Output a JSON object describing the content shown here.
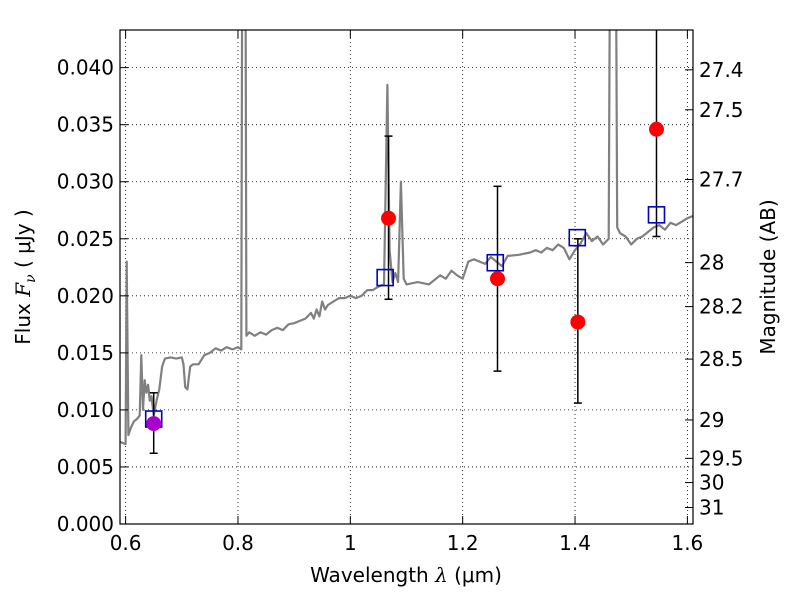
{
  "chart_data": {
    "type": "scatter",
    "xlabel": {
      "prefix": "Wavelength  ",
      "symbol": "λ",
      "unit": " (μm)"
    },
    "ylabel": {
      "prefix": "Flux  ",
      "symbol": "F",
      "sub": "ν",
      "unit": "  ( μJy )"
    },
    "y2label": "Magnitude (AB)",
    "xlim": [
      0.59,
      1.61
    ],
    "ylim": [
      0.0,
      0.0433
    ],
    "x_ticks": [
      0.6,
      0.8,
      1.0,
      1.2,
      1.4,
      1.6
    ],
    "x_tick_labels": [
      "0.6",
      "0.8",
      "1",
      "1.2",
      "1.4",
      "1.6"
    ],
    "y_ticks": [
      0.0,
      0.005,
      0.01,
      0.015,
      0.02,
      0.025,
      0.03,
      0.035,
      0.04
    ],
    "y_tick_labels": [
      "0.000",
      "0.005",
      "0.010",
      "0.015",
      "0.020",
      "0.025",
      "0.030",
      "0.035",
      "0.040"
    ],
    "y2_ticks": [
      {
        "label": "27.4",
        "mag": 27.4
      },
      {
        "label": "27.5",
        "mag": 27.5
      },
      {
        "label": "27.7",
        "mag": 27.7
      },
      {
        "label": "28",
        "mag": 28.0
      },
      {
        "label": "28.2",
        "mag": 28.2
      },
      {
        "label": "28.5",
        "mag": 28.5
      },
      {
        "label": "29",
        "mag": 29.0
      },
      {
        "label": "29.5",
        "mag": 29.5
      },
      {
        "label": "30",
        "mag": 30.0
      },
      {
        "label": "31",
        "mag": 31.0
      }
    ],
    "grid": true,
    "colors": {
      "spectrum": "#808080",
      "observed": "#ff0000",
      "model": "#0000cc",
      "errorbar": "#000000",
      "highlight": "#aa00cc"
    },
    "spectrum": [
      [
        0.59,
        0.0072
      ],
      [
        0.595,
        0.0071
      ],
      [
        0.6,
        0.007
      ],
      [
        0.602,
        0.023
      ],
      [
        0.605,
        0.0078
      ],
      [
        0.61,
        0.0085
      ],
      [
        0.615,
        0.009
      ],
      [
        0.62,
        0.0092
      ],
      [
        0.625,
        0.0095
      ],
      [
        0.628,
        0.0148
      ],
      [
        0.631,
        0.01
      ],
      [
        0.634,
        0.0126
      ],
      [
        0.637,
        0.0115
      ],
      [
        0.64,
        0.0122
      ],
      [
        0.643,
        0.0108
      ],
      [
        0.646,
        0.0112
      ],
      [
        0.65,
        0.0095
      ],
      [
        0.655,
        0.0108
      ],
      [
        0.66,
        0.0118
      ],
      [
        0.665,
        0.0138
      ],
      [
        0.67,
        0.0145
      ],
      [
        0.68,
        0.0146
      ],
      [
        0.69,
        0.0145
      ],
      [
        0.7,
        0.0146
      ],
      [
        0.703,
        0.014
      ],
      [
        0.706,
        0.012
      ],
      [
        0.71,
        0.0118
      ],
      [
        0.715,
        0.0138
      ],
      [
        0.72,
        0.014
      ],
      [
        0.73,
        0.014
      ],
      [
        0.74,
        0.0148
      ],
      [
        0.75,
        0.015
      ],
      [
        0.76,
        0.0154
      ],
      [
        0.77,
        0.0152
      ],
      [
        0.78,
        0.0155
      ],
      [
        0.79,
        0.0153
      ],
      [
        0.8,
        0.0155
      ],
      [
        0.806,
        0.0153
      ],
      [
        0.809,
        0.08
      ],
      [
        0.812,
        0.08
      ],
      [
        0.815,
        0.0165
      ],
      [
        0.82,
        0.0168
      ],
      [
        0.83,
        0.0165
      ],
      [
        0.84,
        0.0168
      ],
      [
        0.85,
        0.0166
      ],
      [
        0.86,
        0.017
      ],
      [
        0.87,
        0.0172
      ],
      [
        0.88,
        0.017
      ],
      [
        0.89,
        0.0175
      ],
      [
        0.9,
        0.0176
      ],
      [
        0.91,
        0.0178
      ],
      [
        0.92,
        0.018
      ],
      [
        0.93,
        0.0185
      ],
      [
        0.935,
        0.018
      ],
      [
        0.94,
        0.0188
      ],
      [
        0.945,
        0.0182
      ],
      [
        0.95,
        0.0195
      ],
      [
        0.955,
        0.0188
      ],
      [
        0.96,
        0.0192
      ],
      [
        0.97,
        0.0195
      ],
      [
        0.98,
        0.0198
      ],
      [
        0.99,
        0.0198
      ],
      [
        1.0,
        0.02
      ],
      [
        1.01,
        0.0198
      ],
      [
        1.02,
        0.02
      ],
      [
        1.03,
        0.0205
      ],
      [
        1.04,
        0.0205
      ],
      [
        1.05,
        0.0208
      ],
      [
        1.06,
        0.021
      ],
      [
        1.066,
        0.0385
      ],
      [
        1.07,
        0.024
      ],
      [
        1.075,
        0.0212
      ],
      [
        1.08,
        0.022
      ],
      [
        1.085,
        0.0212
      ],
      [
        1.09,
        0.03
      ],
      [
        1.095,
        0.0215
      ],
      [
        1.1,
        0.021
      ],
      [
        1.12,
        0.0212
      ],
      [
        1.14,
        0.021
      ],
      [
        1.16,
        0.0218
      ],
      [
        1.17,
        0.0215
      ],
      [
        1.18,
        0.0222
      ],
      [
        1.19,
        0.0218
      ],
      [
        1.2,
        0.0215
      ],
      [
        1.21,
        0.023
      ],
      [
        1.22,
        0.0232
      ],
      [
        1.24,
        0.0228
      ],
      [
        1.25,
        0.0234
      ],
      [
        1.27,
        0.0226
      ],
      [
        1.28,
        0.0235
      ],
      [
        1.3,
        0.0236
      ],
      [
        1.32,
        0.0238
      ],
      [
        1.33,
        0.024
      ],
      [
        1.34,
        0.0238
      ],
      [
        1.35,
        0.0242
      ],
      [
        1.36,
        0.024
      ],
      [
        1.37,
        0.0245
      ],
      [
        1.38,
        0.0242
      ],
      [
        1.39,
        0.0232
      ],
      [
        1.4,
        0.024
      ],
      [
        1.41,
        0.0246
      ],
      [
        1.42,
        0.0255
      ],
      [
        1.43,
        0.0248
      ],
      [
        1.44,
        0.0252
      ],
      [
        1.45,
        0.0245
      ],
      [
        1.46,
        0.025
      ],
      [
        1.465,
        0.08
      ],
      [
        1.47,
        0.08
      ],
      [
        1.475,
        0.026
      ],
      [
        1.48,
        0.0255
      ],
      [
        1.49,
        0.0252
      ],
      [
        1.5,
        0.0245
      ],
      [
        1.51,
        0.025
      ],
      [
        1.52,
        0.0252
      ],
      [
        1.53,
        0.0256
      ],
      [
        1.54,
        0.026
      ],
      [
        1.55,
        0.0262
      ],
      [
        1.56,
        0.0258
      ],
      [
        1.57,
        0.0264
      ],
      [
        1.58,
        0.0262
      ],
      [
        1.59,
        0.0265
      ],
      [
        1.6,
        0.0268
      ],
      [
        1.61,
        0.027
      ]
    ],
    "observed": [
      {
        "x": 0.65,
        "y": 0.0088,
        "ylo": 0.0062,
        "yhi": 0.0115
      },
      {
        "x": 1.068,
        "y": 0.0268,
        "ylo": 0.0197,
        "yhi": 0.034
      },
      {
        "x": 1.262,
        "y": 0.0215,
        "ylo": 0.0134,
        "yhi": 0.0296
      },
      {
        "x": 1.405,
        "y": 0.0177,
        "ylo": 0.0106,
        "yhi": 0.025
      },
      {
        "x": 1.545,
        "y": 0.0346,
        "ylo": 0.0252,
        "yhi": 0.044
      }
    ],
    "model": [
      {
        "x": 0.65,
        "y": 0.0092
      },
      {
        "x": 1.062,
        "y": 0.0216
      },
      {
        "x": 1.258,
        "y": 0.0229
      },
      {
        "x": 1.404,
        "y": 0.0251
      },
      {
        "x": 1.545,
        "y": 0.0271
      }
    ]
  }
}
